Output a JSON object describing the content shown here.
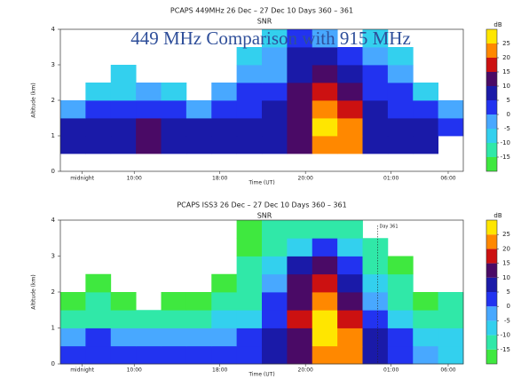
{
  "header": {
    "title": "449 MHz Comparison with 915 MHz"
  },
  "chart_data": [
    {
      "type": "heatmap",
      "title": "PCAPS 449MHz  26 Dec – 27 Dec 10 Days 360 – 361",
      "subtitle": "SNR",
      "ylabel": "Altitude (km)",
      "xlabel": "Time (UT)",
      "clabel": "dB",
      "xlim": [
        0,
        24
      ],
      "ylim": [
        0,
        4
      ],
      "yticks": [
        0,
        1,
        2,
        3,
        4
      ],
      "xticks": [
        {
          "value": 1.3,
          "label": "midnight"
        },
        {
          "value": 4.4,
          "label": "10:00"
        },
        {
          "value": 9.5,
          "label": "18:00"
        },
        {
          "value": 14.6,
          "label": "20:00"
        },
        {
          "value": 19.7,
          "label": "01:00"
        },
        {
          "value": 23.1,
          "label": "06:00"
        }
      ],
      "clim": [
        -20,
        30
      ],
      "cticks": [
        -15,
        -10,
        -5,
        0,
        5,
        10,
        15,
        20,
        25
      ],
      "colors": [
        "#3fe83f",
        "#30e8a8",
        "#33d0ee",
        "#48a8ff",
        "#2233f0",
        "#1a1aa8",
        "#4a0a66",
        "#cc1111",
        "#ff8800",
        "#ffe600"
      ],
      "z": [
        [
          null,
          null,
          null,
          null,
          null,
          null,
          null,
          null,
          null,
          null,
          null,
          null,
          null,
          null,
          null,
          null
        ],
        [
          7,
          8,
          8,
          12,
          8,
          7,
          8,
          9,
          8,
          12,
          24,
          22,
          7,
          6,
          5,
          null
        ],
        [
          6,
          7,
          8,
          12,
          8,
          7,
          7,
          7,
          8,
          14,
          26,
          24,
          9,
          6,
          5,
          3
        ],
        [
          -3,
          2,
          3,
          4,
          2,
          -2,
          1,
          4,
          5,
          12,
          23,
          18,
          6,
          4,
          2,
          -4
        ],
        [
          null,
          -6,
          -7,
          -3,
          -8,
          null,
          -5,
          0,
          2,
          10,
          18,
          12,
          4,
          2,
          -6,
          null
        ],
        [
          null,
          null,
          -8,
          null,
          null,
          null,
          null,
          -4,
          -2,
          8,
          12,
          8,
          0,
          -4,
          null,
          null
        ],
        [
          null,
          null,
          null,
          null,
          null,
          null,
          null,
          -6,
          -3,
          5,
          8,
          4,
          -5,
          -7,
          null,
          null
        ],
        [
          null,
          null,
          null,
          null,
          null,
          null,
          null,
          null,
          -7,
          2,
          -2,
          null,
          -8,
          null,
          null,
          null
        ]
      ]
    },
    {
      "type": "heatmap",
      "title": "PCAPS ISS3  26 Dec – 27 Dec 10 Days 360 – 361",
      "subtitle": "SNR",
      "ylabel": "Altitude (km)",
      "xlabel": "Time (UT)",
      "clabel": "dB",
      "annotation": "Day 361",
      "xlim": [
        0,
        24
      ],
      "ylim": [
        0,
        4
      ],
      "yticks": [
        0,
        1,
        2,
        3,
        4
      ],
      "xticks": [
        {
          "value": 1.3,
          "label": "midnight"
        },
        {
          "value": 4.4,
          "label": "10:00"
        },
        {
          "value": 9.5,
          "label": "18:00"
        },
        {
          "value": 14.6,
          "label": "20:00"
        },
        {
          "value": 19.7,
          "label": "01:00"
        },
        {
          "value": 23.1,
          "label": "06:00"
        }
      ],
      "annotation_x": 18.9,
      "clim": [
        -20,
        30
      ],
      "cticks": [
        -15,
        -10,
        -5,
        0,
        5,
        10,
        15,
        20,
        25
      ],
      "colors": [
        "#3fe83f",
        "#30e8a8",
        "#33d0ee",
        "#48a8ff",
        "#2233f0",
        "#1a1aa8",
        "#4a0a66",
        "#cc1111",
        "#ff8800",
        "#ffe600"
      ],
      "z": [
        [
          2,
          3,
          2,
          0,
          1,
          2,
          3,
          4,
          8,
          12,
          24,
          22,
          8,
          4,
          -3,
          -6
        ],
        [
          -2,
          0,
          -3,
          -5,
          -4,
          -3,
          -2,
          0,
          6,
          14,
          26,
          20,
          6,
          0,
          -8,
          -10
        ],
        [
          -12,
          -14,
          -15,
          -12,
          -13,
          -14,
          -10,
          -8,
          3,
          15,
          25,
          16,
          2,
          -10,
          -14,
          -14
        ],
        [
          -16,
          -15,
          -17,
          null,
          -16,
          -17,
          -15,
          -12,
          0,
          12,
          20,
          12,
          -4,
          -12,
          -16,
          -15
        ],
        [
          null,
          -17,
          null,
          null,
          null,
          null,
          -17,
          -13,
          -5,
          10,
          16,
          8,
          -8,
          -14,
          null,
          null
        ],
        [
          null,
          null,
          null,
          null,
          null,
          null,
          null,
          -15,
          -8,
          8,
          12,
          2,
          -12,
          -16,
          null,
          null
        ],
        [
          null,
          null,
          null,
          null,
          null,
          null,
          null,
          -16,
          -12,
          -6,
          4,
          -6,
          -15,
          null,
          null,
          null
        ],
        [
          null,
          null,
          null,
          null,
          null,
          null,
          null,
          -17,
          -15,
          -14,
          -12,
          -15,
          null,
          null,
          null,
          null
        ]
      ]
    }
  ]
}
